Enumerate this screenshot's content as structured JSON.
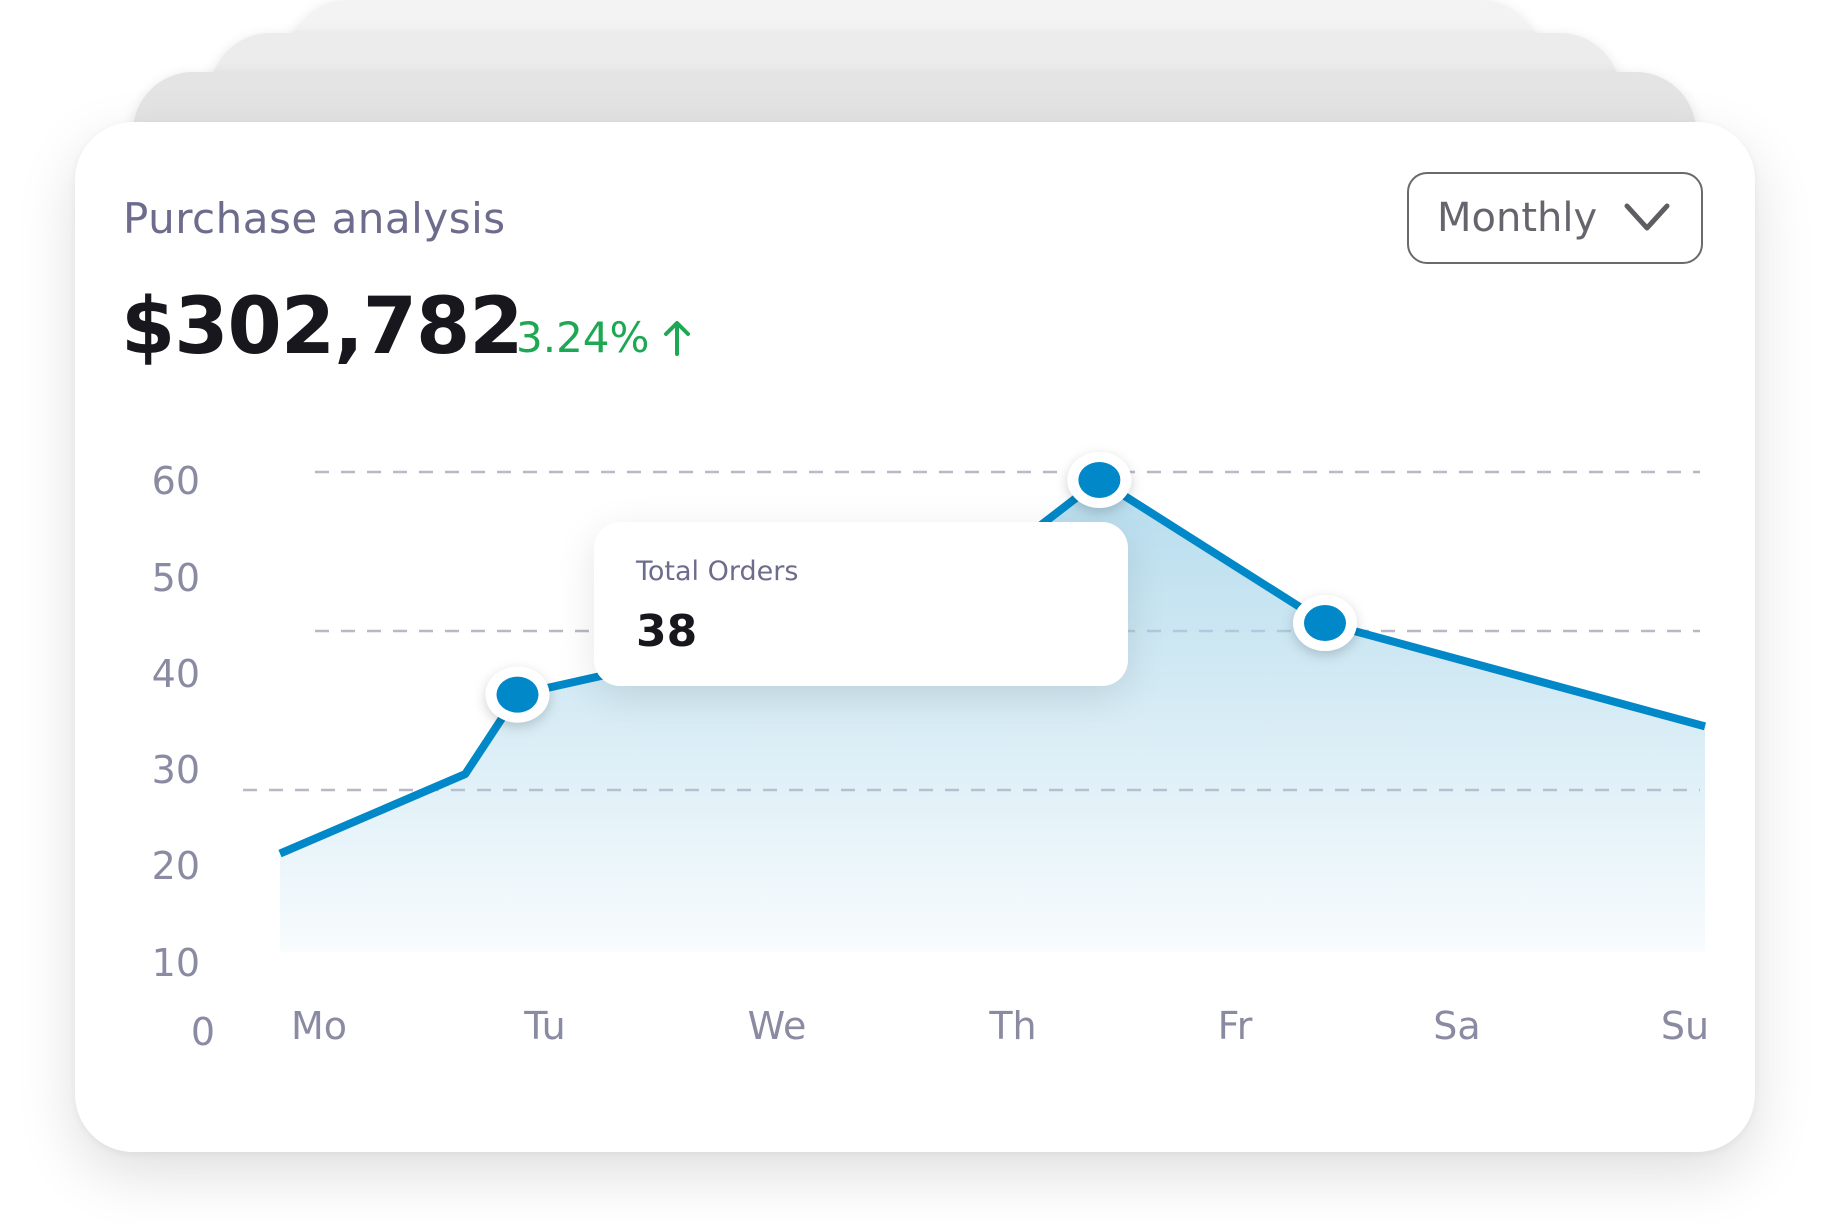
{
  "card": {
    "title": "Purchase analysis",
    "total_value": "$302,782",
    "change_percent": "3.24%",
    "change_direction": "up",
    "change_color": "#1ea854",
    "period_select": {
      "selected": "Monthly",
      "icon": "chevron-down-icon"
    }
  },
  "tooltip": {
    "label": "Total Orders",
    "value": "38"
  },
  "chart_data": {
    "type": "area",
    "categories": [
      "Mo",
      "Tu",
      "We",
      "Th",
      "Fr",
      "Sa",
      "Su"
    ],
    "x": [
      0,
      0.78,
      1.0,
      2.8,
      3.45,
      4.4,
      6.0
    ],
    "values": [
      12,
      22,
      32,
      44,
      59,
      41,
      28
    ],
    "markers": [
      {
        "x": 1.0,
        "y": 32
      },
      {
        "x": 3.45,
        "y": 59
      },
      {
        "x": 4.4,
        "y": 41
      }
    ],
    "yticks": [
      "0",
      "10",
      "20",
      "30",
      "40",
      "50",
      "60"
    ],
    "gridlines": [
      20,
      40,
      60
    ],
    "ylim": [
      0,
      60
    ],
    "line_color": "#0088c8",
    "fill_color": "#a9d6ea",
    "grid": true,
    "xlabel": "",
    "ylabel": "",
    "title": ""
  }
}
